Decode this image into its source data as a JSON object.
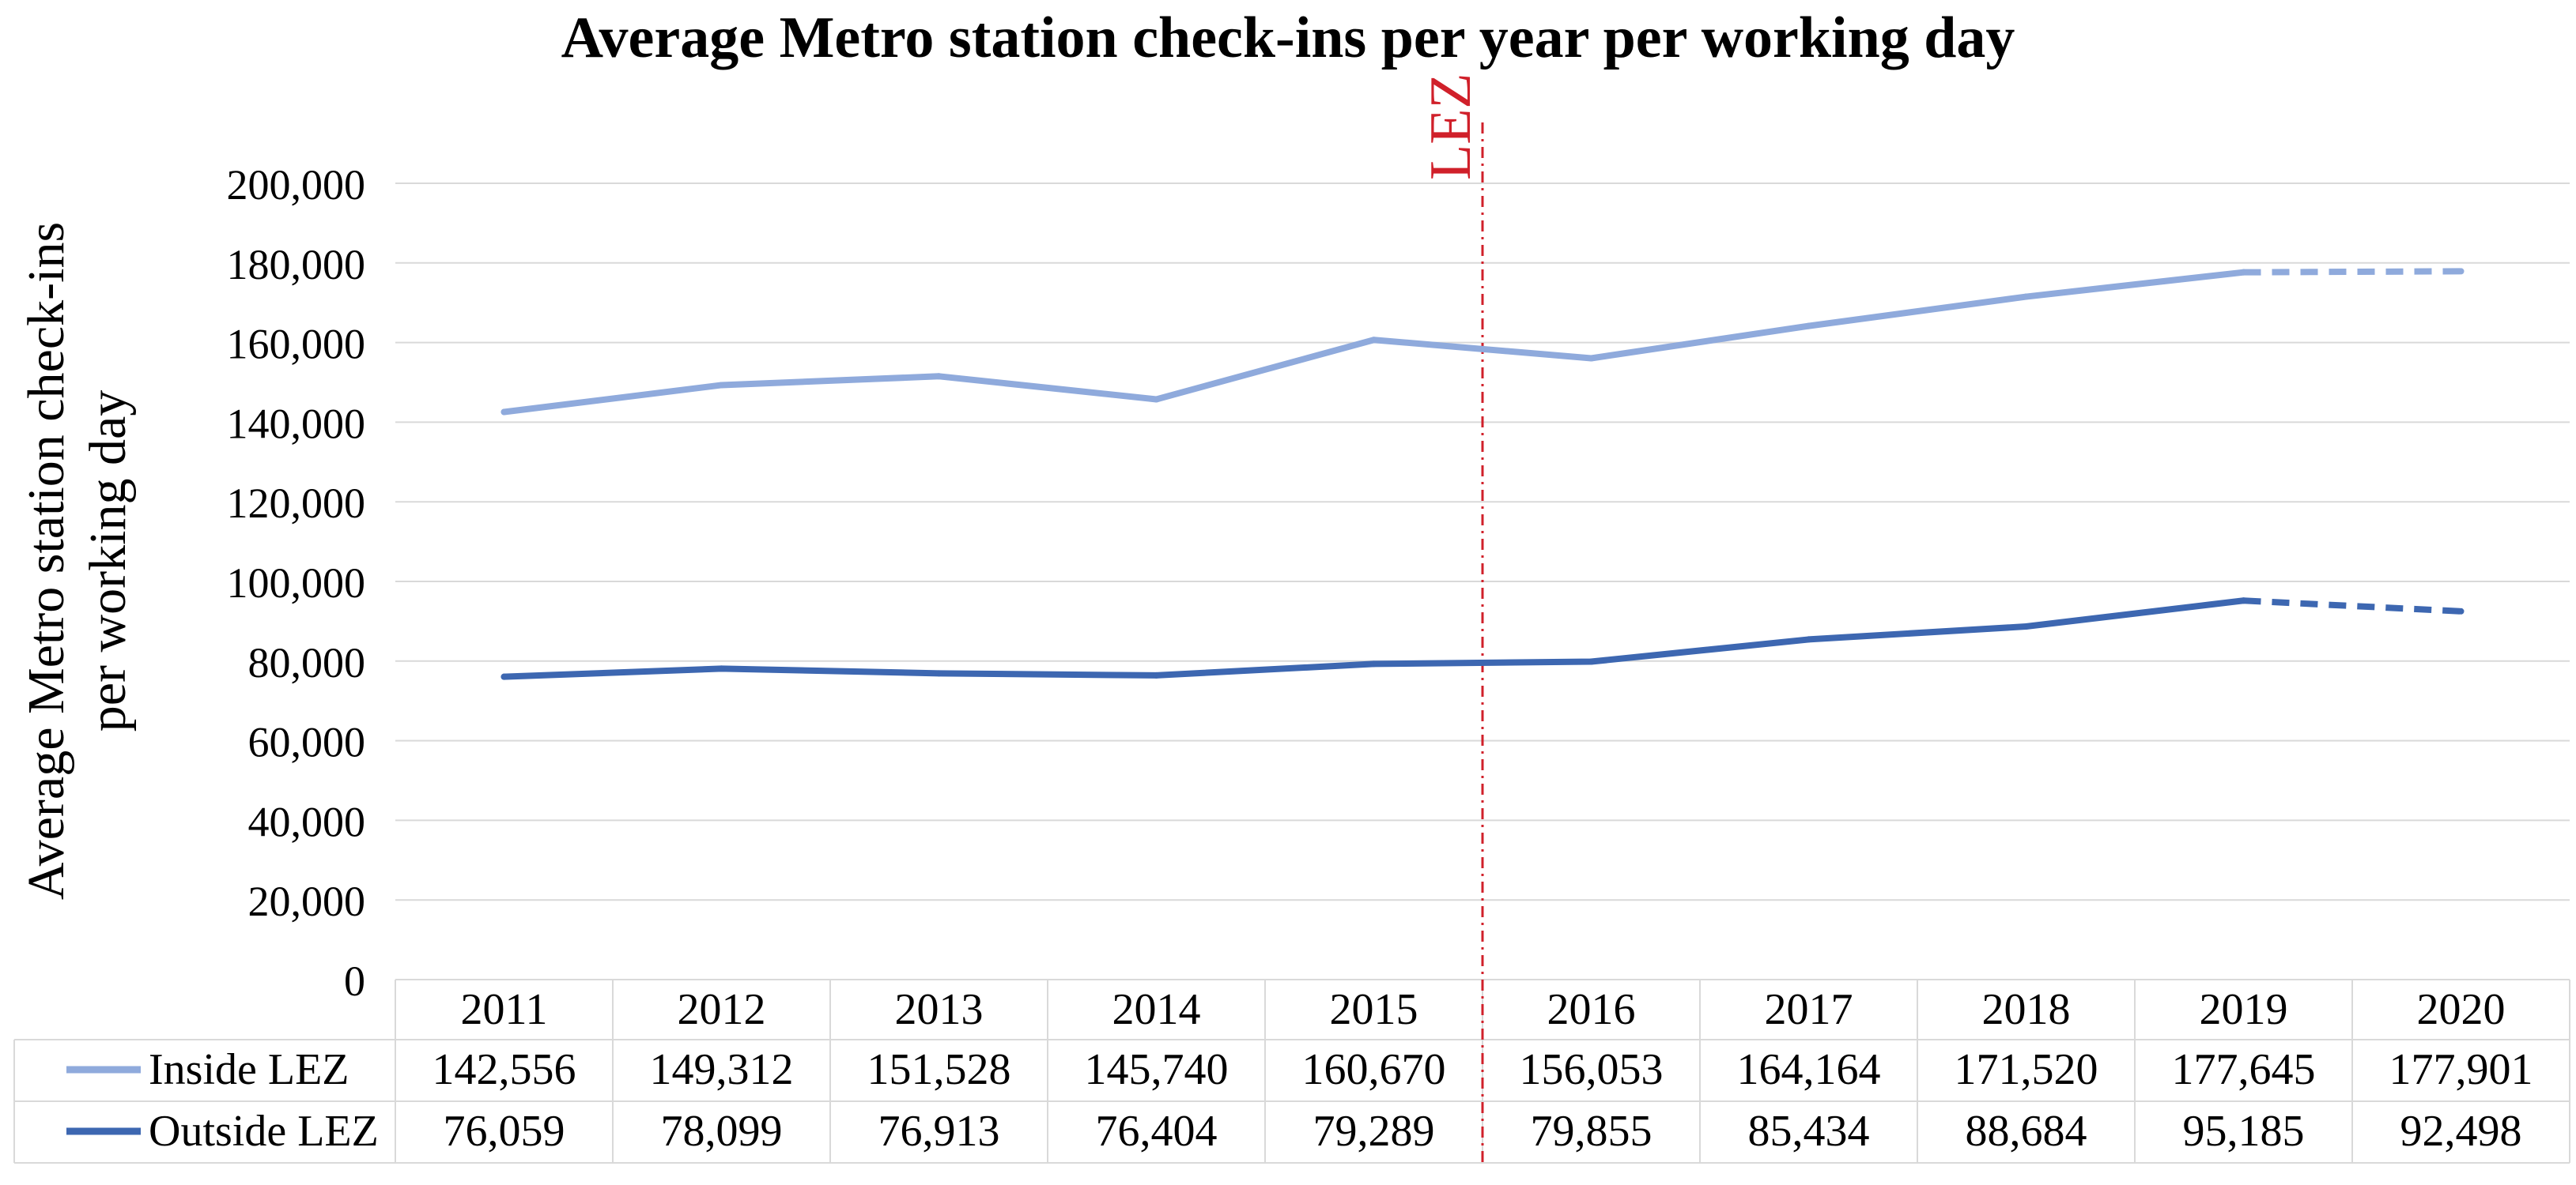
{
  "chart_data": {
    "type": "line",
    "title": "Average Metro station check-ins per year per working day",
    "ylabel_lines": [
      "Average Metro station check-ins",
      "per working day"
    ],
    "xlabel": "",
    "ylim": [
      0,
      200000
    ],
    "ytick_step": 20000,
    "ytick_labels": [
      "0",
      "20,000",
      "40,000",
      "60,000",
      "80,000",
      "100,000",
      "120,000",
      "140,000",
      "160,000",
      "180,000",
      "200,000"
    ],
    "categories": [
      "2011",
      "2012",
      "2013",
      "2014",
      "2015",
      "2016",
      "2017",
      "2018",
      "2019",
      "2020"
    ],
    "series": [
      {
        "name": "Inside LEZ",
        "color": "#8FAADC",
        "values": [
          142556,
          149312,
          151528,
          145740,
          160670,
          156053,
          164164,
          171520,
          177645,
          177901
        ],
        "labels": [
          "142,556",
          "149,312",
          "151,528",
          "145,740",
          "160,670",
          "156,053",
          "164,164",
          "171,520",
          "177,645",
          "177,901"
        ],
        "dashed_from_index": 8
      },
      {
        "name": "Outside LEZ",
        "color": "#3D67B1",
        "values": [
          76059,
          78099,
          76913,
          76404,
          79289,
          79855,
          85434,
          88684,
          95185,
          92498
        ],
        "labels": [
          "76,059",
          "78,099",
          "76,913",
          "76,404",
          "79,289",
          "79,855",
          "85,434",
          "88,684",
          "95,185",
          "92,498"
        ],
        "dashed_from_index": 8
      }
    ],
    "annotation": {
      "text": "LEZ",
      "color": "#D0202A",
      "between_categories": [
        "2015",
        "2016"
      ]
    },
    "grid": true,
    "data_table": true
  }
}
